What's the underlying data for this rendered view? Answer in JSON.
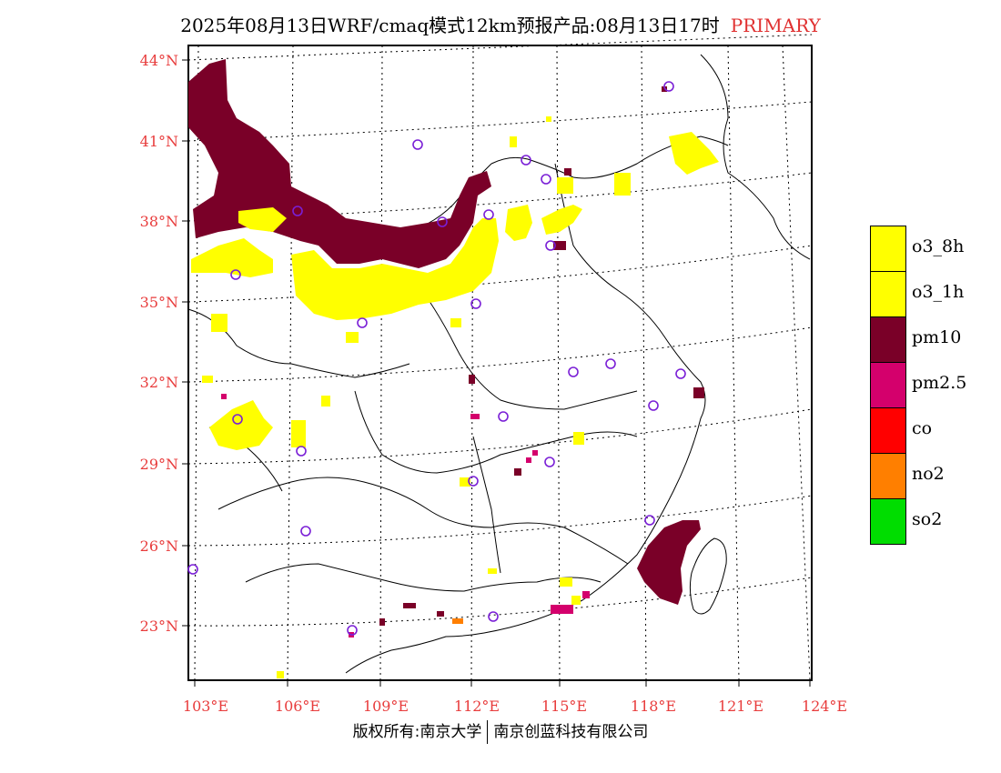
{
  "header": {
    "title": "2025年08月13日WRF/cmaq模式12km预报产品:08月13日17时",
    "tag": "PRIMARY"
  },
  "colors": {
    "o3_8h": "#ffff00",
    "o3_1h": "#ffff00",
    "pm10": "#7a0028",
    "pm2_5": "#d4006c",
    "co": "#ff0000",
    "no2": "#ff7f00",
    "so2": "#00dd00",
    "label_red": "#e83c3c",
    "station_ring": "#7a1fd6"
  },
  "axes": {
    "lat_labels": [
      "44°N",
      "41°N",
      "38°N",
      "35°N",
      "32°N",
      "29°N",
      "26°N",
      "23°N"
    ],
    "lon_labels": [
      "103°E",
      "106°E",
      "109°E",
      "112°E",
      "115°E",
      "118°E",
      "121°E",
      "124°E"
    ]
  },
  "legend": {
    "items": [
      {
        "label": "o3_8h",
        "color": "#ffff00"
      },
      {
        "label": "o3_1h",
        "color": "#ffff00"
      },
      {
        "label": "pm10",
        "color": "#7a0028"
      },
      {
        "label": "pm2.5",
        "color": "#d4006c"
      },
      {
        "label": "co",
        "color": "#ff0000"
      },
      {
        "label": "no2",
        "color": "#ff7f00"
      },
      {
        "label": "so2",
        "color": "#00dd00"
      }
    ]
  },
  "footer": {
    "left": "版权所有:南京大学",
    "right": "南京创蓝科技有限公司"
  }
}
